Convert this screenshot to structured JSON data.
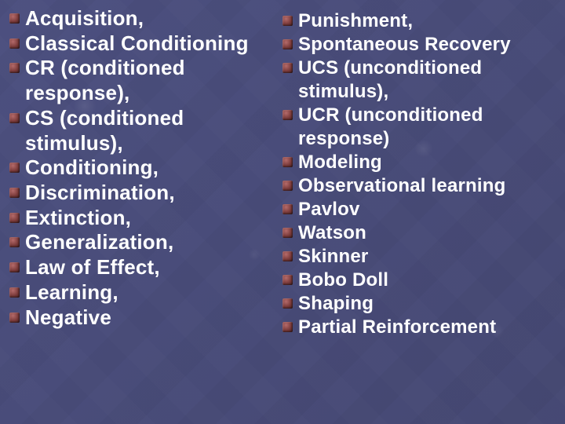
{
  "slide": {
    "background_color": "#4a4d7a",
    "text_color": "#ffffff",
    "bullet_color": "#7a3a3a",
    "font_family": "Arial",
    "font_weight": "bold",
    "left": {
      "fontsize": 26,
      "items": [
        "Acquisition,",
        "Classical Conditioning",
        "CR (conditioned response),",
        "CS (conditioned stimulus),",
        "Conditioning,",
        "Discrimination,",
        "Extinction,",
        "Generalization,",
        "Law of Effect,",
        "Learning,",
        "Negative"
      ]
    },
    "right": {
      "fontsize": 24,
      "items": [
        "Punishment,",
        "Spontaneous Recovery",
        "UCS (unconditioned stimulus),",
        "UCR (unconditioned response)",
        "Modeling",
        "Observational learning",
        "Pavlov",
        "Watson",
        "Skinner",
        "Bobo Doll",
        "Shaping",
        "Partial Reinforcement"
      ]
    }
  }
}
